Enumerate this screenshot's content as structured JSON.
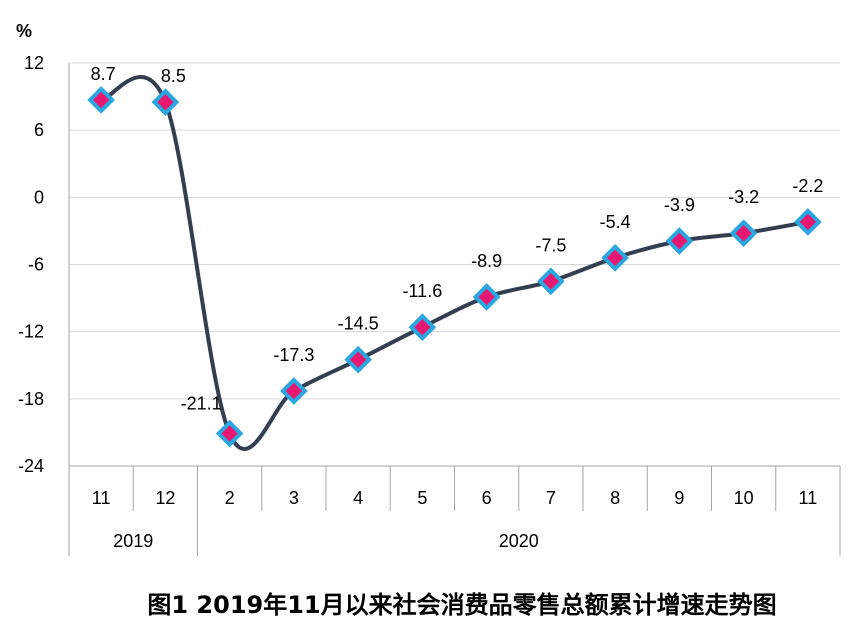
{
  "chart_data": {
    "type": "line",
    "ylabel": "%",
    "ylim": [
      -24,
      12
    ],
    "yticks": [
      "12",
      "6",
      "0",
      "-6",
      "-12",
      "-18",
      "-24"
    ],
    "categories": [
      "11",
      "12",
      "2",
      "3",
      "4",
      "5",
      "6",
      "7",
      "8",
      "9",
      "10",
      "11"
    ],
    "year_groups": [
      {
        "label": "2019",
        "span": 2
      },
      {
        "label": "2020",
        "span": 10
      }
    ],
    "series": [
      {
        "values": [
          8.7,
          8.5,
          -21.1,
          -17.3,
          -14.5,
          -11.6,
          -8.9,
          -7.5,
          -5.4,
          -3.9,
          -3.2,
          -2.2
        ],
        "labels": [
          "8.7",
          "8.5",
          "-21.1",
          "-17.3",
          "-14.5",
          "-11.6",
          "-8.9",
          "-7.5",
          "-5.4",
          "-3.9",
          "-3.2",
          "-2.2"
        ]
      }
    ],
    "grid": true,
    "colors": {
      "line": "#333f50",
      "marker_fill": "#e8176f",
      "marker_edge": "#2aa7e0",
      "grid": "#d9d9d9",
      "axis": "#a6a6a6"
    }
  },
  "caption": "图1  2019年11月以来社会消费品零售总额累计增速走势图"
}
